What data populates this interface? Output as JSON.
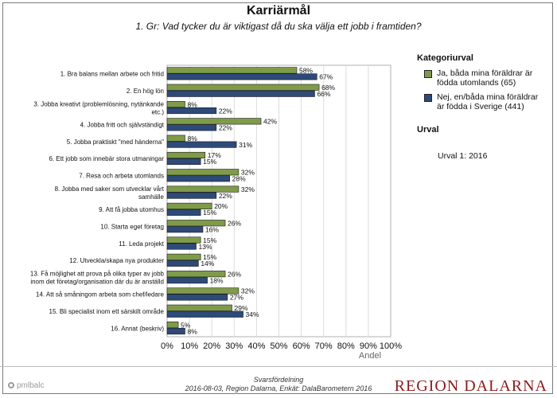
{
  "chart_data": {
    "type": "bar",
    "orientation": "horizontal",
    "title": "Karriärmål",
    "subtitle": "1. Gr: Vad tycker du är viktigast då du ska välja ett jobb i framtiden?",
    "xlabel": "Andel",
    "xlim": [
      0,
      100
    ],
    "xticks": [
      "0%",
      "10%",
      "20%",
      "30%",
      "40%",
      "50%",
      "60%",
      "70%",
      "80%",
      "90%",
      "100%"
    ],
    "grid": true,
    "legend_position": "right",
    "categories": [
      [
        "1. Bra balans mellan arbete och fritid"
      ],
      [
        "2. En hög lön"
      ],
      [
        "3. Jobba kreativt (problemlösning, nytänkande",
        "etc.)"
      ],
      [
        "4. Jobba fritt och självständigt"
      ],
      [
        "5. Jobba praktiskt \"med händerna\""
      ],
      [
        "6. Ett jobb som innebär stora utmaningar"
      ],
      [
        "7. Resa och arbeta utomlands"
      ],
      [
        "8. Jobba med saker som utvecklar vårt",
        "samhälle"
      ],
      [
        "9. Att få jobba utomhus"
      ],
      [
        "10. Starta eget företag"
      ],
      [
        "11. Leda projekt"
      ],
      [
        "12. Utveckla/skapa nya produkter"
      ],
      [
        "13. Få möjlighet att prova på olika typer av jobb",
        "inom det företag/organisation där du är anställd"
      ],
      [
        "14. Att så småningom arbeta som chef/ledare"
      ],
      [
        "15. Bli specialist inom ett särskilt område"
      ],
      [
        "16. Annat (beskriv)"
      ]
    ],
    "series": [
      {
        "name": "Ja, båda mina föräldrar är födda utomlands (65)",
        "color": "#7f9b4a",
        "values": [
          58,
          68,
          8,
          42,
          8,
          17,
          32,
          32,
          20,
          26,
          15,
          15,
          26,
          32,
          29,
          5
        ]
      },
      {
        "name": "Nej, en/båda mina föräldrar är födda i Sverige (441)",
        "color": "#2e4a78",
        "values": [
          67,
          66,
          22,
          22,
          31,
          15,
          28,
          22,
          15,
          16,
          13,
          14,
          18,
          27,
          34,
          8
        ]
      }
    ]
  },
  "legend": {
    "heading": "Kategoriurval",
    "items": [
      {
        "lines": [
          "Ja, båda mina föräldrar är",
          "födda utomlands (65)"
        ]
      },
      {
        "lines": [
          "Nej, en/båda mina föräldrar",
          "är födda i Sverige (441)"
        ]
      }
    ]
  },
  "selection": {
    "heading": "Urval",
    "value": "Urval 1: 2016"
  },
  "footer": {
    "line1": "Svarsfördelning",
    "line2": "2016-08-03, Region Dalarna, Enkät: DalaBarometern 2016",
    "brand_left": "pmlbalc",
    "brand_right": "REGION DALARNA"
  }
}
